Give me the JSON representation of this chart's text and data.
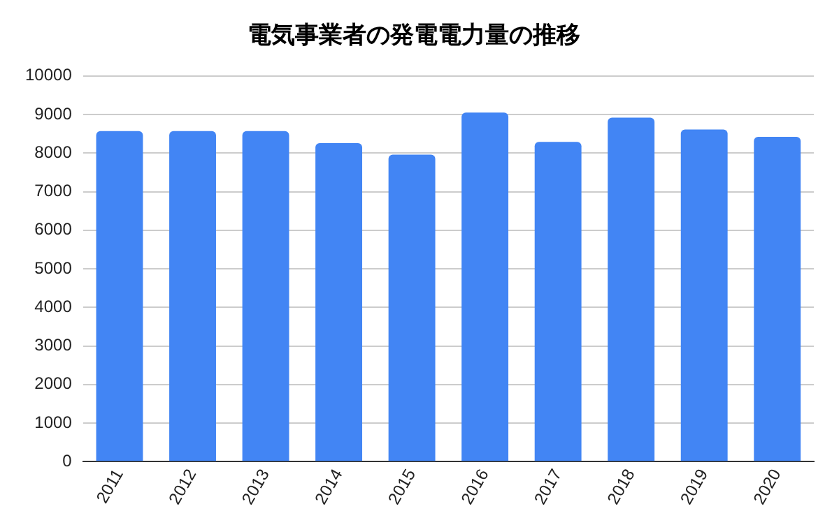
{
  "chart_data": {
    "type": "bar",
    "title": "電気事業者の発電電力量の推移",
    "categories": [
      "2011",
      "2012",
      "2013",
      "2014",
      "2015",
      "2016",
      "2017",
      "2018",
      "2019",
      "2020"
    ],
    "values": [
      8570,
      8570,
      8570,
      8260,
      7960,
      9050,
      8290,
      8920,
      8610,
      8420
    ],
    "color": "#4285f4",
    "ylim": [
      0,
      10000
    ],
    "yticks": [
      0,
      1000,
      2000,
      3000,
      4000,
      5000,
      6000,
      7000,
      8000,
      9000,
      10000
    ],
    "grid": "y"
  }
}
